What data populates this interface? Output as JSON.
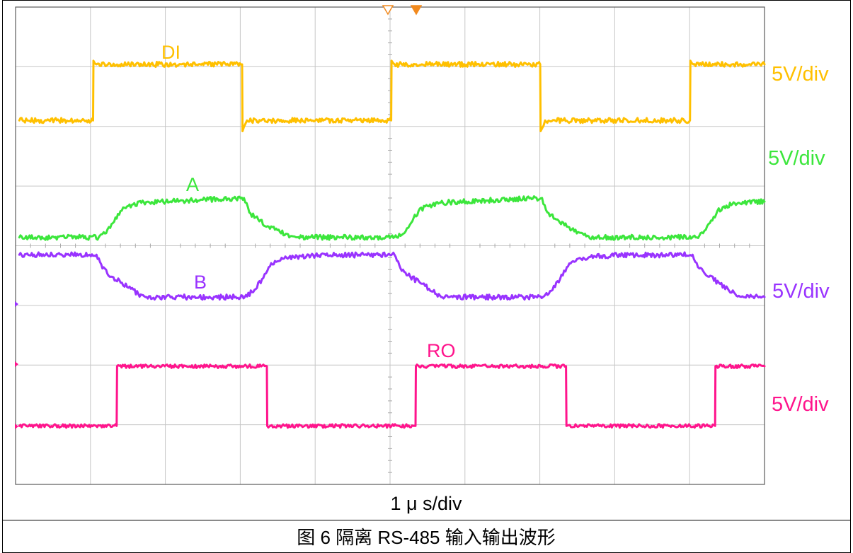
{
  "chart_data": {
    "type": "line",
    "xlabel": "1 μ s/div",
    "xlim": [
      0,
      10
    ],
    "grid": true,
    "series": [
      {
        "name": "DI",
        "scale": "5V/div",
        "color": "#FFC000",
        "ylim": [
          -30.5,
          9.5
        ],
        "points": [
          [
            0.05,
            0
          ],
          [
            1.035,
            0
          ],
          [
            1.04,
            5.0
          ],
          [
            1.08,
            4.7
          ],
          [
            3.025,
            4.7
          ],
          [
            3.03,
            -0.9
          ],
          [
            3.09,
            0
          ],
          [
            5.015,
            0
          ],
          [
            5.02,
            5.0
          ],
          [
            5.06,
            4.7
          ],
          [
            7.005,
            4.7
          ],
          [
            7.01,
            -0.9
          ],
          [
            7.07,
            0
          ],
          [
            9.005,
            0
          ],
          [
            9.01,
            5.0
          ],
          [
            9.05,
            4.7
          ],
          [
            10,
            4.7
          ]
        ]
      },
      {
        "name": "A",
        "scale": "5V/div",
        "color": "#3CE63C",
        "ylim": [
          -20.7,
          19.3
        ],
        "points": [
          [
            0.05,
            0
          ],
          [
            1.11,
            0
          ],
          [
            1.21,
            0.35
          ],
          [
            1.3,
            1.2
          ],
          [
            1.4,
            2.2
          ],
          [
            1.49,
            2.6
          ],
          [
            1.68,
            2.9
          ],
          [
            2.3,
            3.1
          ],
          [
            3.05,
            3.3
          ],
          [
            3.12,
            2.1
          ],
          [
            3.24,
            1.5
          ],
          [
            3.38,
            0.9
          ],
          [
            3.53,
            0.45
          ],
          [
            3.67,
            0.1
          ],
          [
            3.76,
            0
          ],
          [
            5.09,
            0
          ],
          [
            5.19,
            0.35
          ],
          [
            5.28,
            1.2
          ],
          [
            5.38,
            2.2
          ],
          [
            5.47,
            2.6
          ],
          [
            5.66,
            2.9
          ],
          [
            6.28,
            3.1
          ],
          [
            7.03,
            3.3
          ],
          [
            7.1,
            2.1
          ],
          [
            7.22,
            1.5
          ],
          [
            7.36,
            0.9
          ],
          [
            7.51,
            0.45
          ],
          [
            7.65,
            0.1
          ],
          [
            7.74,
            0
          ],
          [
            9.08,
            0
          ],
          [
            9.18,
            0.35
          ],
          [
            9.27,
            1.2
          ],
          [
            9.37,
            2.2
          ],
          [
            9.46,
            2.6
          ],
          [
            9.65,
            2.9
          ],
          [
            10,
            3.0
          ]
        ]
      },
      {
        "name": "B",
        "scale": "5V/div",
        "color": "#9933FF",
        "ylim": [
          -15.1,
          24.9
        ],
        "points": [
          [
            0.05,
            4.15
          ],
          [
            1.08,
            4.15
          ],
          [
            1.16,
            3.0
          ],
          [
            1.29,
            2.3
          ],
          [
            1.42,
            1.8
          ],
          [
            1.54,
            1.3
          ],
          [
            1.64,
            0.85
          ],
          [
            1.75,
            0.6
          ],
          [
            3.06,
            0.6
          ],
          [
            3.19,
            1.2
          ],
          [
            3.29,
            2.1
          ],
          [
            3.38,
            3.1
          ],
          [
            3.48,
            3.55
          ],
          [
            3.57,
            3.8
          ],
          [
            3.76,
            4.0
          ],
          [
            4.05,
            4.1
          ],
          [
            5.06,
            4.15
          ],
          [
            5.14,
            3.0
          ],
          [
            5.27,
            2.3
          ],
          [
            5.4,
            1.8
          ],
          [
            5.52,
            1.3
          ],
          [
            5.62,
            0.85
          ],
          [
            5.73,
            0.6
          ],
          [
            7.04,
            0.6
          ],
          [
            7.17,
            1.2
          ],
          [
            7.27,
            2.1
          ],
          [
            7.36,
            3.1
          ],
          [
            7.46,
            3.55
          ],
          [
            7.55,
            3.8
          ],
          [
            7.74,
            4.0
          ],
          [
            8.03,
            4.1
          ],
          [
            9.04,
            4.15
          ],
          [
            9.13,
            3.0
          ],
          [
            9.26,
            2.3
          ],
          [
            9.39,
            1.8
          ],
          [
            9.51,
            1.3
          ],
          [
            9.61,
            0.85
          ],
          [
            9.72,
            0.6
          ],
          [
            10,
            0.6
          ]
        ]
      },
      {
        "name": "RO",
        "scale": "5V/div",
        "color": "#FF148C",
        "ylim": [
          -4.9,
          35.1
        ],
        "points": [
          [
            0.05,
            0
          ],
          [
            1.35,
            0
          ],
          [
            1.355,
            5.0
          ],
          [
            3.355,
            5.0
          ],
          [
            3.36,
            0
          ],
          [
            5.34,
            0
          ],
          [
            5.345,
            5.0
          ],
          [
            7.35,
            5.0
          ],
          [
            7.355,
            0
          ],
          [
            9.34,
            0
          ],
          [
            9.345,
            5.0
          ],
          [
            10,
            5.0
          ]
        ]
      }
    ]
  },
  "figure": {
    "caption": "图 6 隔离 RS-485 输入输出波形"
  }
}
